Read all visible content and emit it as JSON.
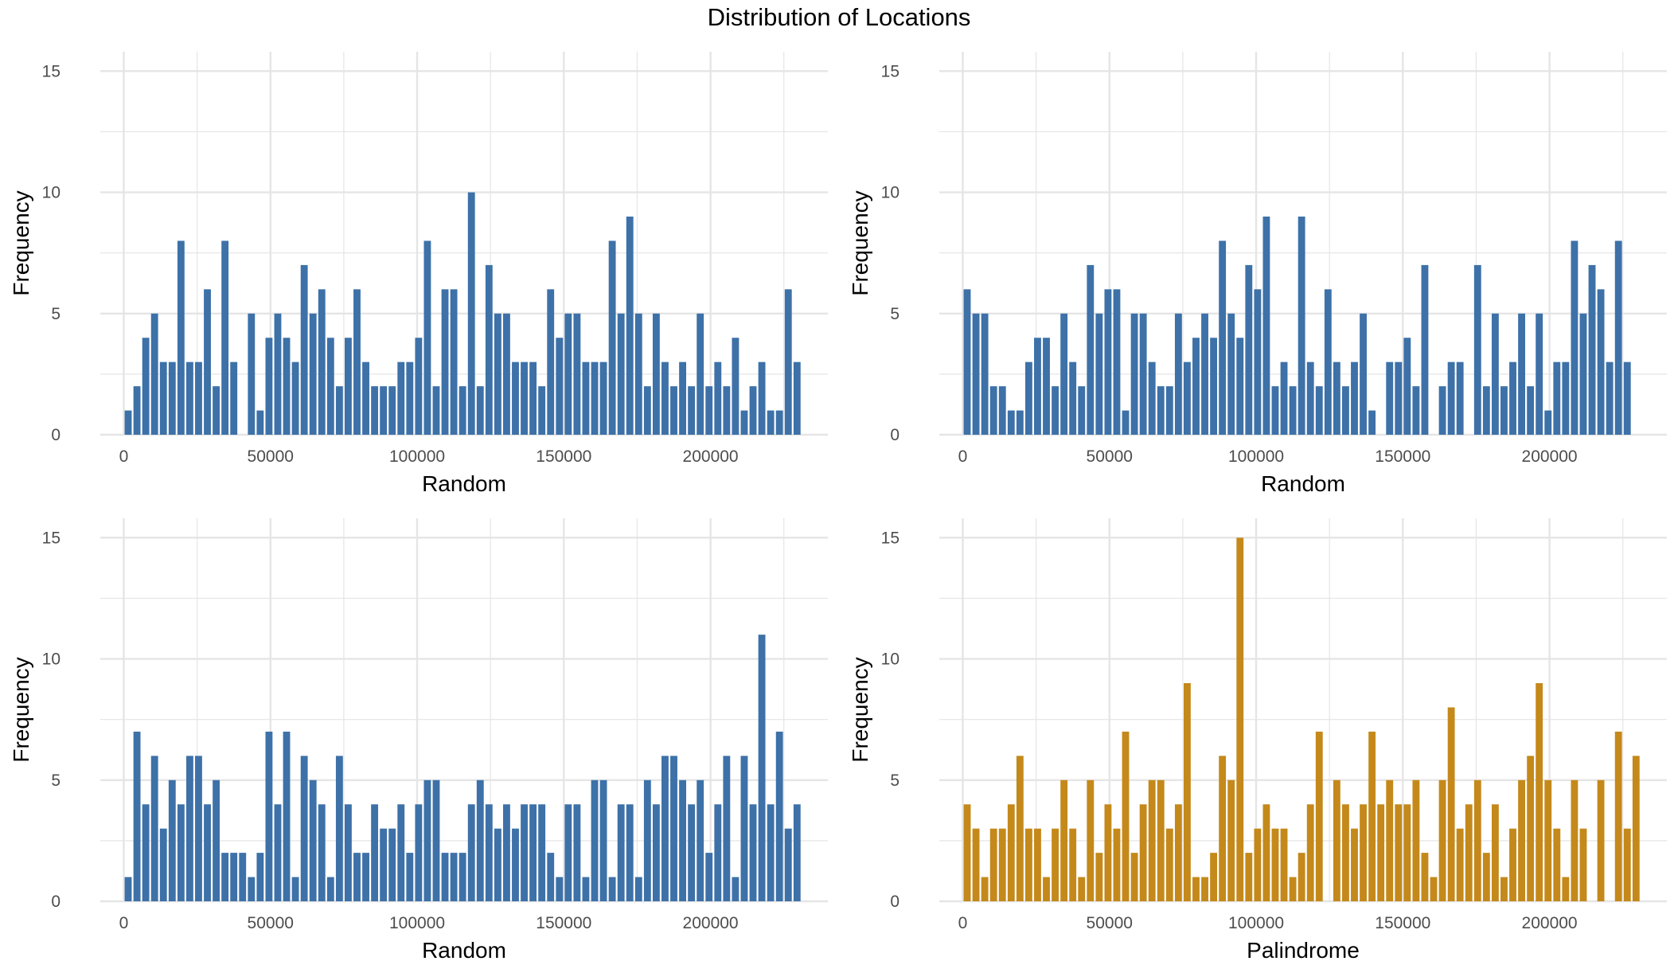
{
  "title": "Distribution of Locations",
  "colors": {
    "random": "#3d71a8",
    "palindrome": "#c4891a",
    "grid": "#e5e5e5",
    "tick_text": "#4d4d4d"
  },
  "chart_data": [
    {
      "type": "bar",
      "panel": "top-left",
      "xlabel": "Random",
      "ylabel": "Frequency",
      "xlim": [
        -8000,
        240000
      ],
      "ylim": [
        0,
        15.8
      ],
      "xticks": [
        0,
        50000,
        100000,
        150000,
        200000
      ],
      "yticks": [
        0,
        5,
        10,
        15
      ],
      "bin_start": 0,
      "bin_width": 3000,
      "grid": true,
      "color": "#3d71a8",
      "values": [
        1,
        2,
        4,
        5,
        3,
        3,
        8,
        3,
        3,
        6,
        2,
        8,
        3,
        0,
        5,
        1,
        4,
        5,
        4,
        3,
        7,
        5,
        6,
        4,
        2,
        4,
        6,
        3,
        2,
        2,
        2,
        3,
        3,
        4,
        8,
        2,
        6,
        6,
        2,
        10,
        2,
        7,
        5,
        5,
        3,
        3,
        3,
        2,
        6,
        4,
        5,
        5,
        3,
        3,
        3,
        8,
        5,
        9,
        5,
        2,
        5,
        3,
        2,
        3,
        2,
        5,
        2,
        3,
        2,
        4,
        1,
        2,
        3,
        1,
        1,
        6,
        3
      ]
    },
    {
      "type": "bar",
      "panel": "top-right",
      "xlabel": "Random",
      "ylabel": "Frequency",
      "xlim": [
        -8000,
        240000
      ],
      "ylim": [
        0,
        15.8
      ],
      "xticks": [
        0,
        50000,
        100000,
        150000,
        200000
      ],
      "yticks": [
        0,
        5,
        10,
        15
      ],
      "bin_start": 0,
      "bin_width": 3000,
      "grid": true,
      "color": "#3d71a8",
      "values": [
        6,
        5,
        5,
        2,
        2,
        1,
        1,
        3,
        4,
        4,
        2,
        5,
        3,
        2,
        7,
        5,
        6,
        6,
        1,
        5,
        5,
        3,
        2,
        2,
        5,
        3,
        4,
        5,
        4,
        8,
        5,
        4,
        7,
        6,
        9,
        2,
        3,
        2,
        9,
        3,
        2,
        6,
        3,
        2,
        3,
        5,
        1,
        0,
        3,
        3,
        4,
        2,
        7,
        0,
        2,
        3,
        3,
        0,
        7,
        2,
        5,
        2,
        3,
        5,
        2,
        5,
        1,
        3,
        3,
        8,
        5,
        7,
        6,
        3,
        8,
        3
      ]
    },
    {
      "type": "bar",
      "panel": "bottom-left",
      "xlabel": "Random",
      "ylabel": "Frequency",
      "xlim": [
        -8000,
        240000
      ],
      "ylim": [
        0,
        15.8
      ],
      "xticks": [
        0,
        50000,
        100000,
        150000,
        200000
      ],
      "yticks": [
        0,
        5,
        10,
        15
      ],
      "bin_start": 0,
      "bin_width": 3000,
      "grid": true,
      "color": "#3d71a8",
      "values": [
        1,
        7,
        4,
        6,
        3,
        5,
        4,
        6,
        6,
        4,
        5,
        2,
        2,
        2,
        1,
        2,
        7,
        4,
        7,
        1,
        6,
        5,
        4,
        1,
        6,
        4,
        2,
        2,
        4,
        3,
        3,
        4,
        2,
        4,
        5,
        5,
        2,
        2,
        2,
        4,
        5,
        4,
        3,
        4,
        3,
        4,
        4,
        4,
        2,
        1,
        4,
        4,
        1,
        5,
        5,
        1,
        4,
        4,
        1,
        5,
        4,
        6,
        6,
        5,
        4,
        5,
        2,
        4,
        6,
        1,
        6,
        4,
        11,
        4,
        7,
        3,
        4
      ]
    },
    {
      "type": "bar",
      "panel": "bottom-right",
      "xlabel": "Palindrome",
      "ylabel": "Frequency",
      "xlim": [
        -8000,
        240000
      ],
      "ylim": [
        0,
        15.8
      ],
      "xticks": [
        0,
        50000,
        100000,
        150000,
        200000
      ],
      "yticks": [
        0,
        5,
        10,
        15
      ],
      "bin_start": 0,
      "bin_width": 3000,
      "grid": true,
      "color": "#c4891a",
      "values": [
        4,
        3,
        1,
        3,
        3,
        4,
        6,
        3,
        3,
        1,
        3,
        5,
        3,
        1,
        5,
        2,
        4,
        3,
        7,
        2,
        4,
        5,
        5,
        3,
        4,
        9,
        1,
        1,
        2,
        6,
        5,
        15,
        2,
        3,
        4,
        3,
        3,
        1,
        2,
        4,
        7,
        0,
        5,
        4,
        3,
        4,
        7,
        4,
        5,
        4,
        4,
        5,
        2,
        1,
        5,
        8,
        3,
        4,
        5,
        2,
        4,
        1,
        3,
        5,
        6,
        9,
        5,
        3,
        1,
        5,
        3,
        0,
        5,
        0,
        7,
        3,
        6
      ]
    }
  ]
}
